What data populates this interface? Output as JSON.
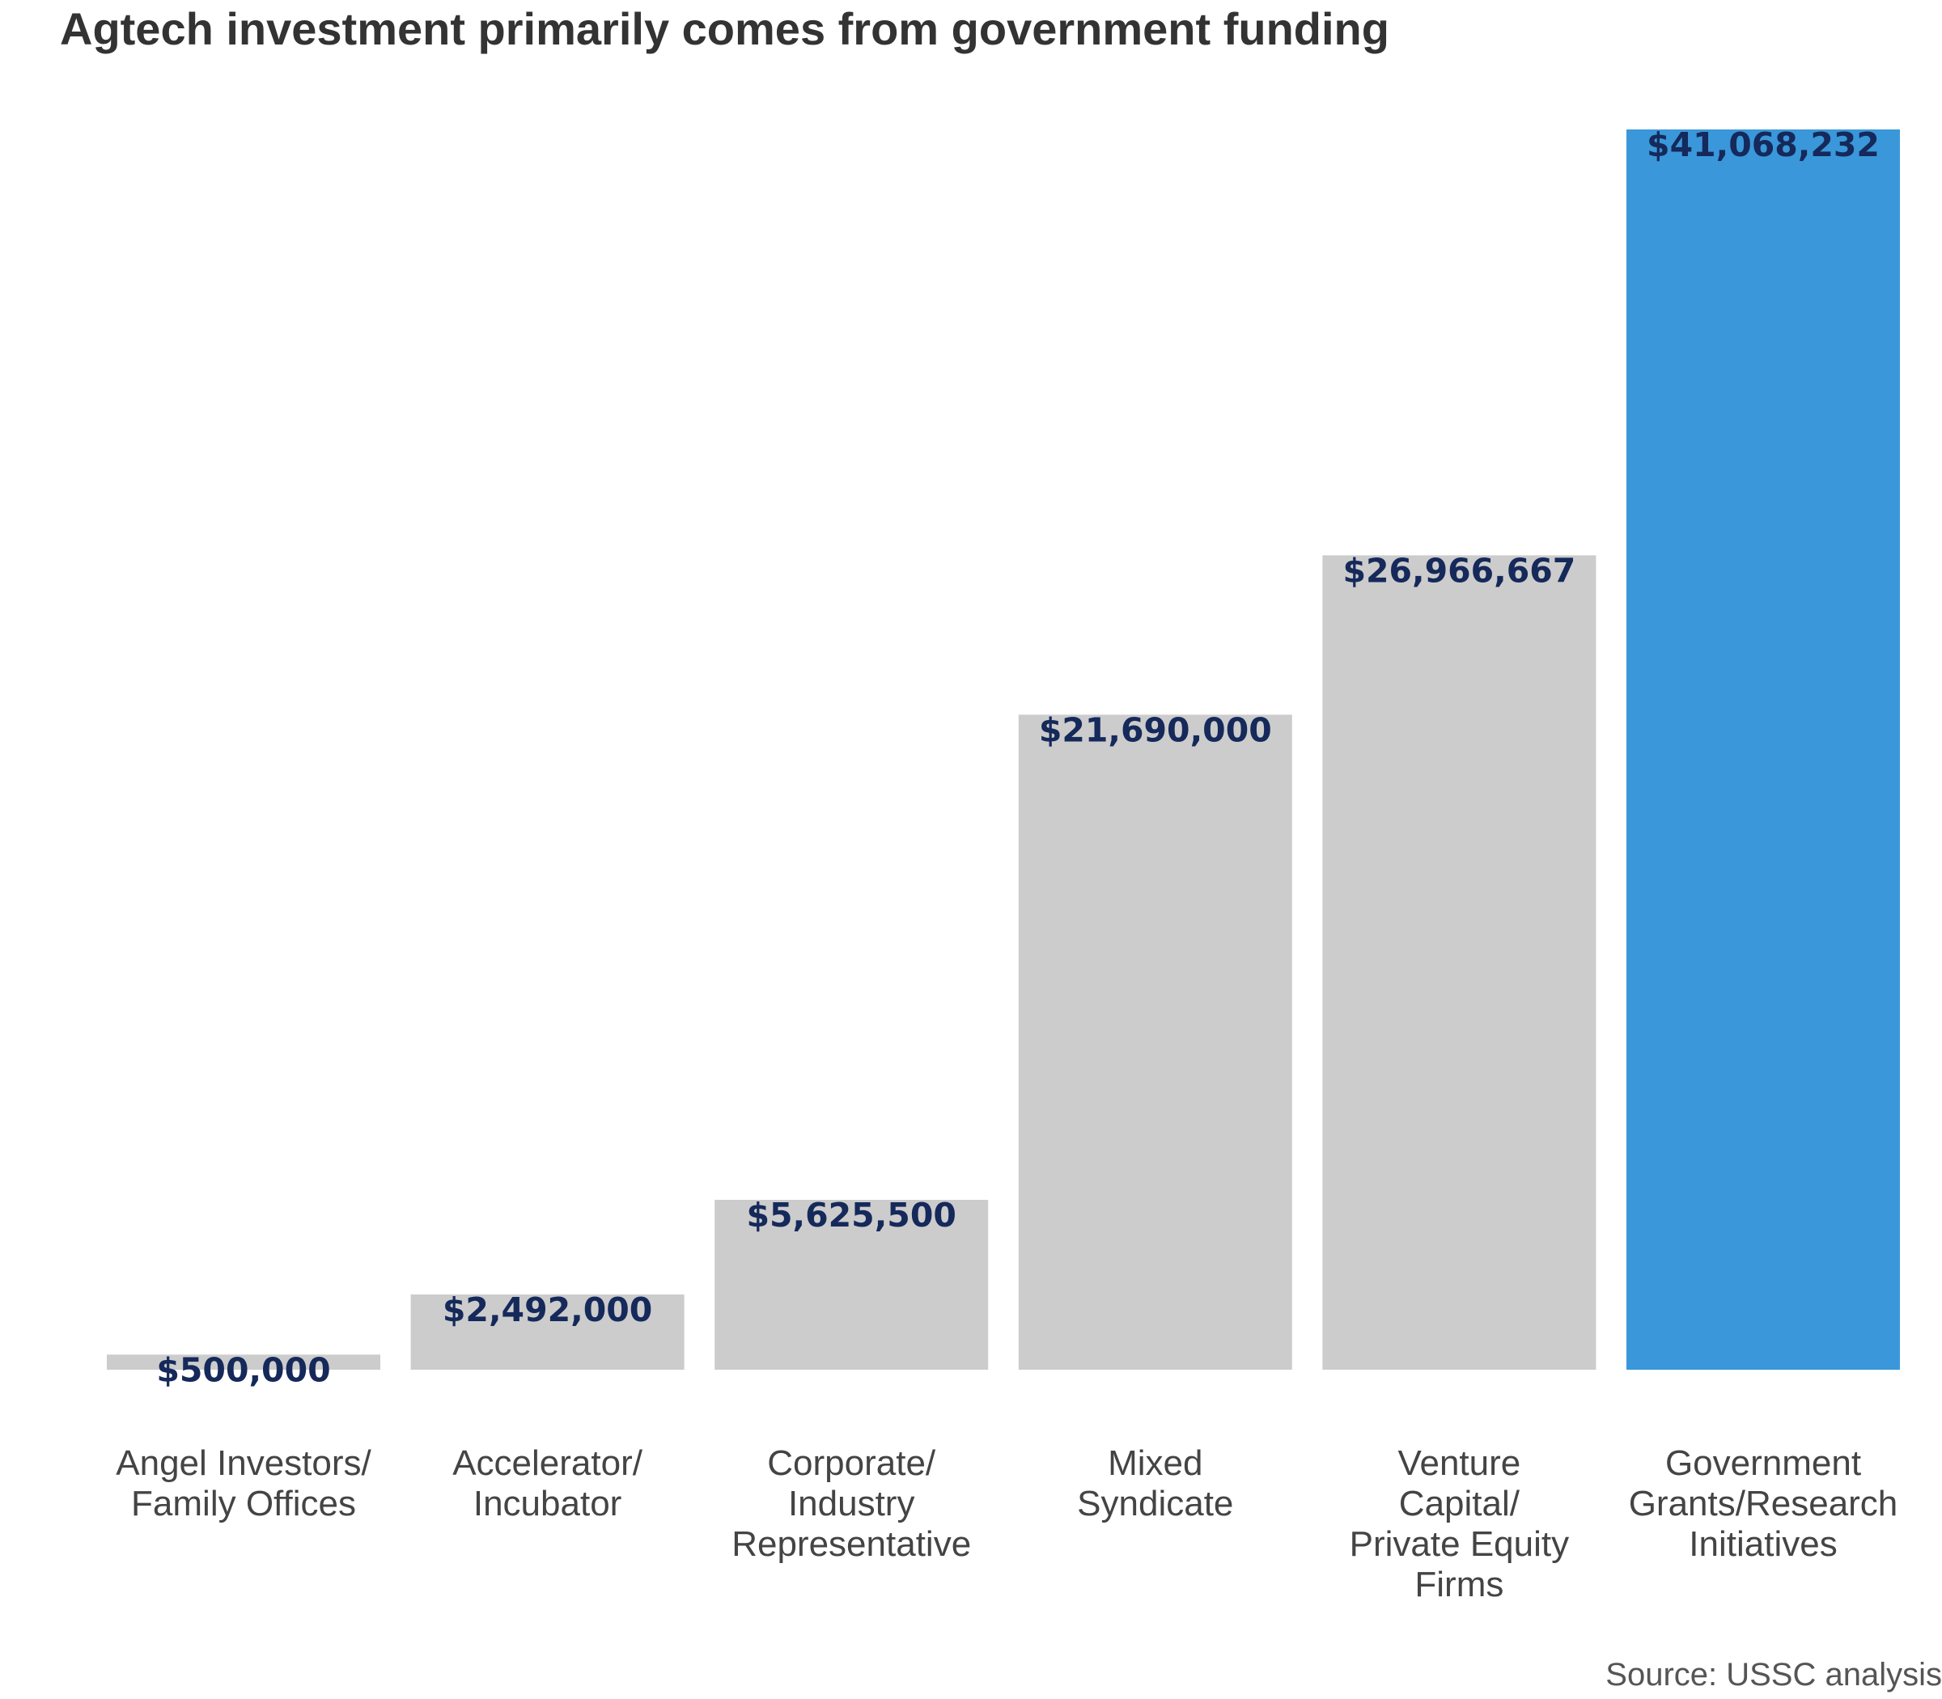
{
  "chart_data": {
    "type": "bar",
    "title": "Agtech investment primarily comes from government funding",
    "categories": [
      [
        "Angel Investors/",
        "Family Offices"
      ],
      [
        "Accelerator/",
        "Incubator"
      ],
      [
        "Corporate/",
        "Industry",
        "Representative"
      ],
      [
        "Mixed",
        "Syndicate"
      ],
      [
        "Venture",
        "Capital/",
        "Private Equity",
        "Firms"
      ],
      [
        "Government",
        "Grants/Research",
        "Initiatives"
      ]
    ],
    "values": [
      500000,
      2492000,
      5625500,
      21690000,
      26966667,
      41068232
    ],
    "value_labels": [
      "$500,000",
      "$2,492,000",
      "$5,625,500",
      "$21,690,000",
      "$26,966,667",
      "$41,068,232"
    ],
    "highlight_index": 5,
    "ylim": [
      0,
      41068232
    ],
    "grid": false,
    "xlabel": "",
    "ylabel": "",
    "colors": {
      "bar": "#cccccc",
      "highlight": "#3a97da",
      "value_label": "#15295a",
      "category_label": "#444444"
    }
  },
  "source": "Source: USSC analysis"
}
